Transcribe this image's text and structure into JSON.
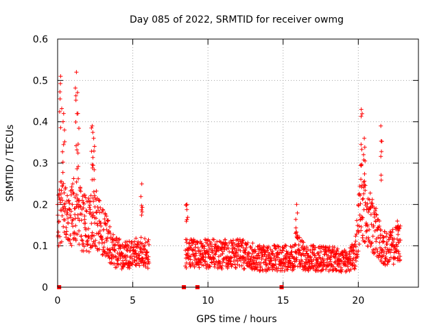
{
  "chart_data": {
    "type": "scatter",
    "title": "Day 085 of 2022, SRMTID for receiver owmg",
    "xlabel": "GPS time / hours",
    "ylabel": "SRMTID / TECUs",
    "xlim": [
      0,
      24
    ],
    "ylim": [
      0,
      0.6
    ],
    "x_ticks": [
      0,
      5,
      10,
      15,
      20
    ],
    "x_tick_labels": [
      "0",
      "5",
      "10",
      "15",
      "20"
    ],
    "y_ticks": [
      0,
      0.1,
      0.2,
      0.3,
      0.4,
      0.5,
      0.6
    ],
    "y_tick_labels": [
      "0",
      "0.1",
      "0.2",
      "0.3",
      "0.4",
      "0.5",
      "0.6"
    ],
    "grid": true,
    "marker": "+",
    "series_color": "#ff0000",
    "envelope_description_hours_vs_value": {
      "segments": [
        {
          "x_start": 0.0,
          "x_end": 6.1
        },
        {
          "x_start": 8.5,
          "x_end": 22.8
        }
      ],
      "center_points": [
        [
          0.0,
          0.15
        ],
        [
          0.3,
          0.2
        ],
        [
          0.6,
          0.16
        ],
        [
          1.0,
          0.18
        ],
        [
          1.3,
          0.2
        ],
        [
          1.6,
          0.16
        ],
        [
          2.0,
          0.15
        ],
        [
          2.4,
          0.17
        ],
        [
          2.8,
          0.15
        ],
        [
          3.2,
          0.13
        ],
        [
          3.6,
          0.09
        ],
        [
          4.2,
          0.08
        ],
        [
          4.8,
          0.08
        ],
        [
          5.4,
          0.09
        ],
        [
          6.0,
          0.08
        ],
        [
          8.5,
          0.08
        ],
        [
          9.5,
          0.08
        ],
        [
          10.5,
          0.08
        ],
        [
          11.5,
          0.08
        ],
        [
          12.5,
          0.08
        ],
        [
          13.5,
          0.07
        ],
        [
          14.5,
          0.07
        ],
        [
          15.5,
          0.07
        ],
        [
          16.0,
          0.09
        ],
        [
          16.5,
          0.07
        ],
        [
          17.5,
          0.07
        ],
        [
          18.5,
          0.07
        ],
        [
          19.0,
          0.06
        ],
        [
          19.5,
          0.07
        ],
        [
          19.8,
          0.08
        ],
        [
          20.0,
          0.15
        ],
        [
          20.2,
          0.22
        ],
        [
          20.5,
          0.17
        ],
        [
          20.8,
          0.16
        ],
        [
          21.2,
          0.13
        ],
        [
          21.6,
          0.1
        ],
        [
          22.0,
          0.09
        ],
        [
          22.4,
          0.1
        ],
        [
          22.8,
          0.11
        ]
      ],
      "peaks": [
        [
          0.2,
          0.51
        ],
        [
          0.4,
          0.42
        ],
        [
          1.25,
          0.52
        ],
        [
          1.35,
          0.42
        ],
        [
          2.3,
          0.39
        ],
        [
          2.4,
          0.36
        ],
        [
          5.6,
          0.25
        ],
        [
          8.6,
          0.2
        ],
        [
          15.9,
          0.2
        ],
        [
          20.2,
          0.43
        ],
        [
          20.4,
          0.36
        ],
        [
          21.5,
          0.39
        ],
        [
          22.6,
          0.16
        ]
      ]
    },
    "zero_markers_hours": [
      0.1,
      8.4,
      9.3,
      14.9
    ]
  }
}
